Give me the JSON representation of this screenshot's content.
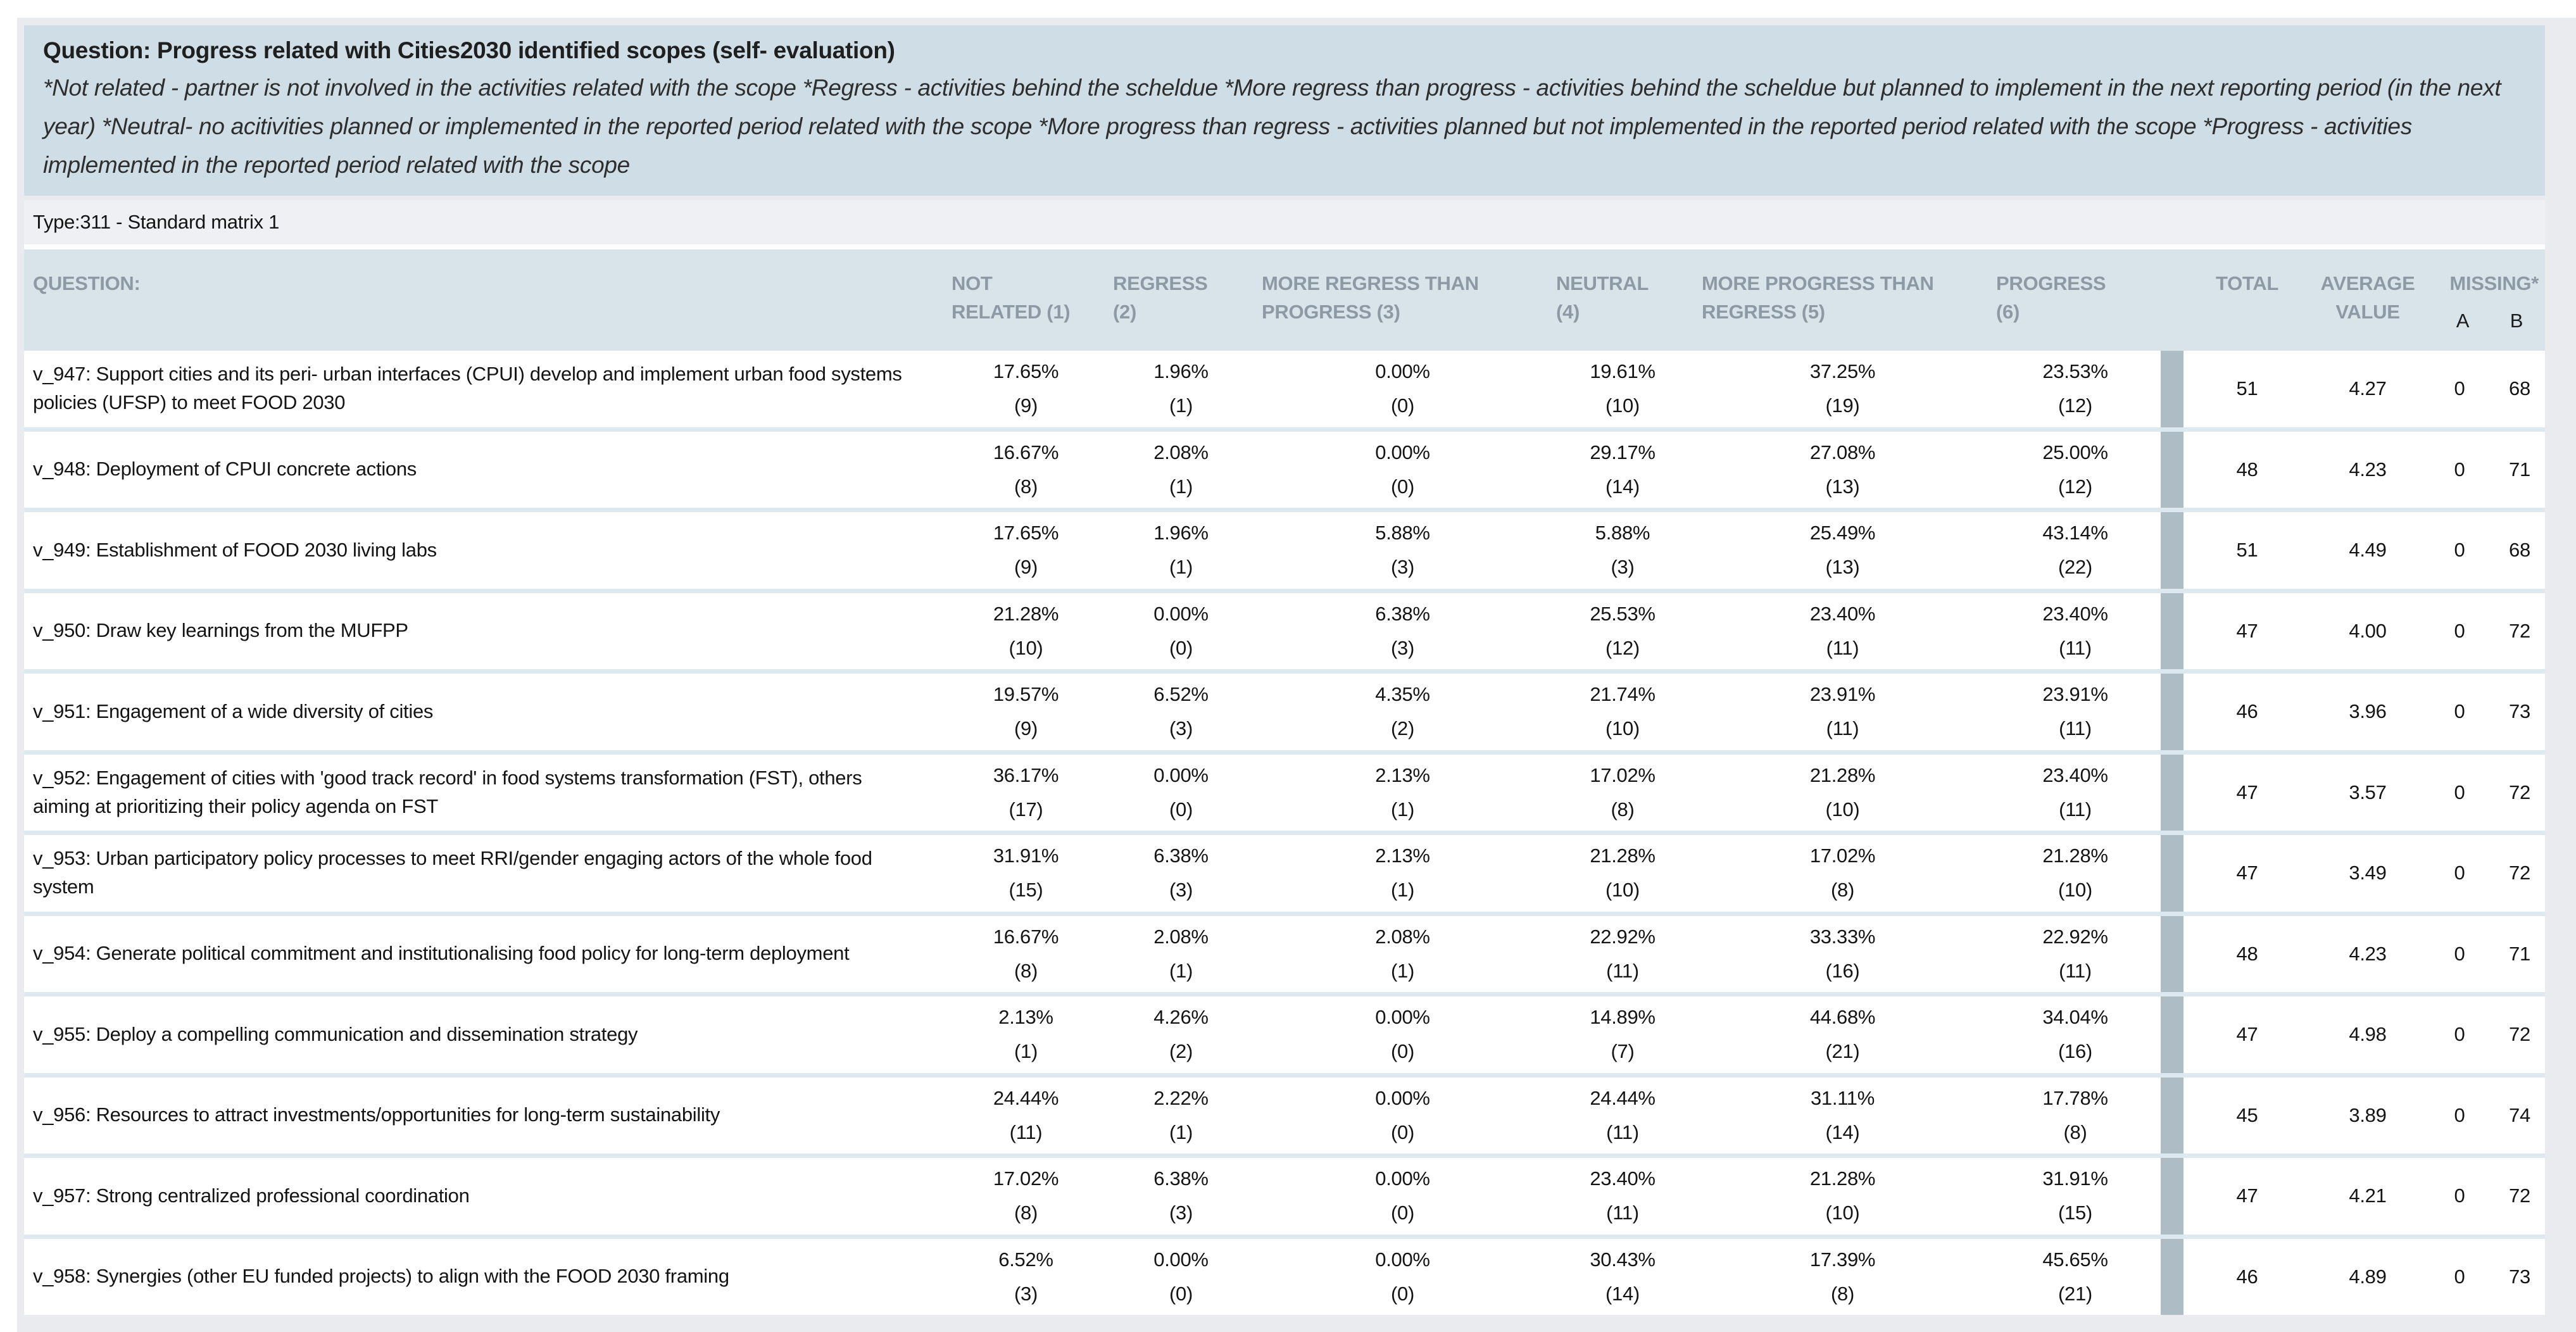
{
  "header": {
    "title": "Question: Progress related with Cities2030 identified scopes (self- evaluation)",
    "description": "*Not related - partner is not involved in the activities related with the scope *Regress - activities behind the scheldue *More regress than progress - activities behind the scheldue but planned to implement in the next reporting period (in the next year) *Neutral- no acitivities planned or implemented in the reported period related with the scope *More progress than regress - activities planned but not implemented in the reported period related with the scope *Progress - activities implemented in the reported period related with the scope"
  },
  "type_row": {
    "label": "Type:311 - Standard matrix 1"
  },
  "colors": {
    "panel_bg": "#e9ebee",
    "question_header_bg": "#cfdee6",
    "type_row_bg": "#eef0f3",
    "table_header_bg": "#d9e4ea",
    "table_header_text": "#8d9aa6",
    "row_separator": "#dde9f0",
    "separator_bar": "#aebcc6"
  },
  "table": {
    "question_header": "QUESTION:",
    "columns": [
      {
        "line1": "NOT",
        "line2": "RELATED (1)"
      },
      {
        "line1": "REGRESS",
        "line2": "(2)"
      },
      {
        "line1": "MORE REGRESS THAN",
        "line2": "PROGRESS (3)"
      },
      {
        "line1": "NEUTRAL",
        "line2": "(4)"
      },
      {
        "line1": "MORE PROGRESS THAN",
        "line2": "REGRESS (5)"
      },
      {
        "line1": "PROGRESS",
        "line2": "(6)"
      }
    ],
    "total_header": "TOTAL",
    "average_header_line1": "AVERAGE",
    "average_header_line2": "VALUE",
    "missing_header": "MISSING*",
    "missing_sub_a": "A",
    "missing_sub_b": "B",
    "rows": [
      {
        "question": "v_947: Support cities and its peri- urban interfaces (CPUI) develop and implement urban food systems policies (UFSP) to meet FOOD 2030",
        "cells": [
          {
            "pct": "17.65%",
            "count": "(9)"
          },
          {
            "pct": "1.96%",
            "count": "(1)"
          },
          {
            "pct": "0.00%",
            "count": "(0)"
          },
          {
            "pct": "19.61%",
            "count": "(10)"
          },
          {
            "pct": "37.25%",
            "count": "(19)"
          },
          {
            "pct": "23.53%",
            "count": "(12)"
          }
        ],
        "total": "51",
        "average": "4.27",
        "missing_a": "0",
        "missing_b": "68"
      },
      {
        "question": "v_948: Deployment of CPUI concrete actions",
        "cells": [
          {
            "pct": "16.67%",
            "count": "(8)"
          },
          {
            "pct": "2.08%",
            "count": "(1)"
          },
          {
            "pct": "0.00%",
            "count": "(0)"
          },
          {
            "pct": "29.17%",
            "count": "(14)"
          },
          {
            "pct": "27.08%",
            "count": "(13)"
          },
          {
            "pct": "25.00%",
            "count": "(12)"
          }
        ],
        "total": "48",
        "average": "4.23",
        "missing_a": "0",
        "missing_b": "71"
      },
      {
        "question": "v_949: Establishment of FOOD 2030 living labs",
        "cells": [
          {
            "pct": "17.65%",
            "count": "(9)"
          },
          {
            "pct": "1.96%",
            "count": "(1)"
          },
          {
            "pct": "5.88%",
            "count": "(3)"
          },
          {
            "pct": "5.88%",
            "count": "(3)"
          },
          {
            "pct": "25.49%",
            "count": "(13)"
          },
          {
            "pct": "43.14%",
            "count": "(22)"
          }
        ],
        "total": "51",
        "average": "4.49",
        "missing_a": "0",
        "missing_b": "68"
      },
      {
        "question": "v_950: Draw key learnings from the MUFPP",
        "cells": [
          {
            "pct": "21.28%",
            "count": "(10)"
          },
          {
            "pct": "0.00%",
            "count": "(0)"
          },
          {
            "pct": "6.38%",
            "count": "(3)"
          },
          {
            "pct": "25.53%",
            "count": "(12)"
          },
          {
            "pct": "23.40%",
            "count": "(11)"
          },
          {
            "pct": "23.40%",
            "count": "(11)"
          }
        ],
        "total": "47",
        "average": "4.00",
        "missing_a": "0",
        "missing_b": "72"
      },
      {
        "question": "v_951: Engagement of a wide diversity of cities",
        "cells": [
          {
            "pct": "19.57%",
            "count": "(9)"
          },
          {
            "pct": "6.52%",
            "count": "(3)"
          },
          {
            "pct": "4.35%",
            "count": "(2)"
          },
          {
            "pct": "21.74%",
            "count": "(10)"
          },
          {
            "pct": "23.91%",
            "count": "(11)"
          },
          {
            "pct": "23.91%",
            "count": "(11)"
          }
        ],
        "total": "46",
        "average": "3.96",
        "missing_a": "0",
        "missing_b": "73"
      },
      {
        "question": "v_952: Engagement of cities with 'good track record' in food systems transformation (FST), others aiming at prioritizing their policy agenda on FST",
        "cells": [
          {
            "pct": "36.17%",
            "count": "(17)"
          },
          {
            "pct": "0.00%",
            "count": "(0)"
          },
          {
            "pct": "2.13%",
            "count": "(1)"
          },
          {
            "pct": "17.02%",
            "count": "(8)"
          },
          {
            "pct": "21.28%",
            "count": "(10)"
          },
          {
            "pct": "23.40%",
            "count": "(11)"
          }
        ],
        "total": "47",
        "average": "3.57",
        "missing_a": "0",
        "missing_b": "72"
      },
      {
        "question": "v_953: Urban participatory policy processes to meet RRI/gender engaging actors of the whole food system",
        "cells": [
          {
            "pct": "31.91%",
            "count": "(15)"
          },
          {
            "pct": "6.38%",
            "count": "(3)"
          },
          {
            "pct": "2.13%",
            "count": "(1)"
          },
          {
            "pct": "21.28%",
            "count": "(10)"
          },
          {
            "pct": "17.02%",
            "count": "(8)"
          },
          {
            "pct": "21.28%",
            "count": "(10)"
          }
        ],
        "total": "47",
        "average": "3.49",
        "missing_a": "0",
        "missing_b": "72"
      },
      {
        "question": "v_954: Generate political commitment and institutionalising food policy for long-term deployment",
        "cells": [
          {
            "pct": "16.67%",
            "count": "(8)"
          },
          {
            "pct": "2.08%",
            "count": "(1)"
          },
          {
            "pct": "2.08%",
            "count": "(1)"
          },
          {
            "pct": "22.92%",
            "count": "(11)"
          },
          {
            "pct": "33.33%",
            "count": "(16)"
          },
          {
            "pct": "22.92%",
            "count": "(11)"
          }
        ],
        "total": "48",
        "average": "4.23",
        "missing_a": "0",
        "missing_b": "71"
      },
      {
        "question": "v_955: Deploy a compelling communication and dissemination strategy",
        "cells": [
          {
            "pct": "2.13%",
            "count": "(1)"
          },
          {
            "pct": "4.26%",
            "count": "(2)"
          },
          {
            "pct": "0.00%",
            "count": "(0)"
          },
          {
            "pct": "14.89%",
            "count": "(7)"
          },
          {
            "pct": "44.68%",
            "count": "(21)"
          },
          {
            "pct": "34.04%",
            "count": "(16)"
          }
        ],
        "total": "47",
        "average": "4.98",
        "missing_a": "0",
        "missing_b": "72"
      },
      {
        "question": "v_956: Resources to attract investments/opportunities for long-term sustainability",
        "cells": [
          {
            "pct": "24.44%",
            "count": "(11)"
          },
          {
            "pct": "2.22%",
            "count": "(1)"
          },
          {
            "pct": "0.00%",
            "count": "(0)"
          },
          {
            "pct": "24.44%",
            "count": "(11)"
          },
          {
            "pct": "31.11%",
            "count": "(14)"
          },
          {
            "pct": "17.78%",
            "count": "(8)"
          }
        ],
        "total": "45",
        "average": "3.89",
        "missing_a": "0",
        "missing_b": "74"
      },
      {
        "question": "v_957: Strong centralized professional coordination",
        "cells": [
          {
            "pct": "17.02%",
            "count": "(8)"
          },
          {
            "pct": "6.38%",
            "count": "(3)"
          },
          {
            "pct": "0.00%",
            "count": "(0)"
          },
          {
            "pct": "23.40%",
            "count": "(11)"
          },
          {
            "pct": "21.28%",
            "count": "(10)"
          },
          {
            "pct": "31.91%",
            "count": "(15)"
          }
        ],
        "total": "47",
        "average": "4.21",
        "missing_a": "0",
        "missing_b": "72"
      },
      {
        "question": "v_958: Synergies (other EU funded projects) to align with the FOOD 2030 framing",
        "cells": [
          {
            "pct": "6.52%",
            "count": "(3)"
          },
          {
            "pct": "0.00%",
            "count": "(0)"
          },
          {
            "pct": "0.00%",
            "count": "(0)"
          },
          {
            "pct": "30.43%",
            "count": "(14)"
          },
          {
            "pct": "17.39%",
            "count": "(8)"
          },
          {
            "pct": "45.65%",
            "count": "(21)"
          }
        ],
        "total": "46",
        "average": "4.89",
        "missing_a": "0",
        "missing_b": "73"
      }
    ]
  }
}
